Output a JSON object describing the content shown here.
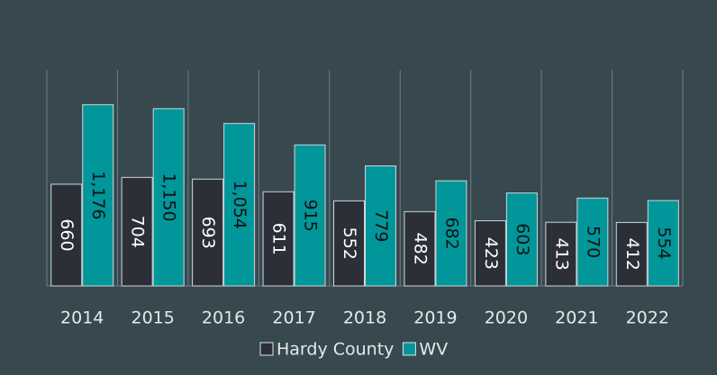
{
  "chart_data": {
    "type": "bar",
    "categories": [
      "2014",
      "2015",
      "2016",
      "2017",
      "2018",
      "2019",
      "2020",
      "2021",
      "2022"
    ],
    "series": [
      {
        "name": "Hardy County",
        "color": "#2c2f38",
        "values": [
          660,
          704,
          693,
          611,
          552,
          482,
          423,
          413,
          412
        ]
      },
      {
        "name": "WV",
        "color": "#00969a",
        "values": [
          1176,
          1150,
          1054,
          915,
          779,
          682,
          603,
          570,
          554
        ],
        "value_labels": [
          "1,176",
          "1,150",
          "1,054",
          "915",
          "779",
          "682",
          "603",
          "570",
          "554"
        ]
      }
    ],
    "ylim": [
      0,
      1400
    ]
  }
}
